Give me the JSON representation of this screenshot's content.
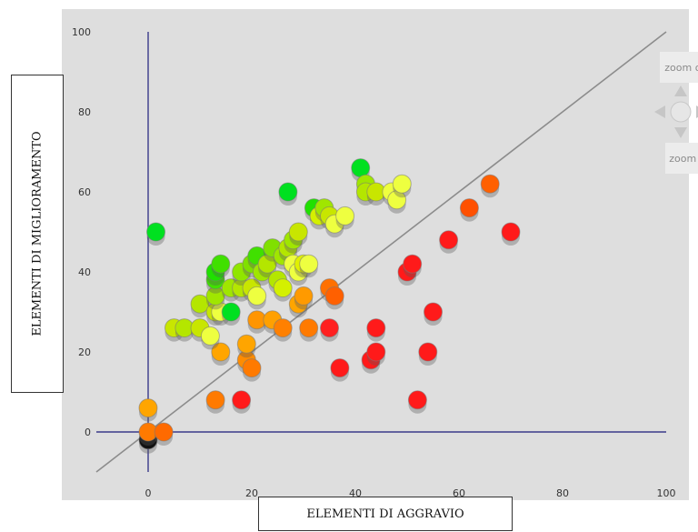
{
  "chart_data": {
    "type": "scatter",
    "title": "",
    "xlabel": "ELEMENTI DI AGGRAVIO",
    "ylabel": "ELEMENTI DI MIGLIORAMENTO",
    "xlim": [
      -10,
      100
    ],
    "ylim": [
      -10,
      100
    ],
    "x_ticks": [
      0,
      20,
      40,
      60,
      80,
      100
    ],
    "y_ticks": [
      0,
      20,
      40,
      60,
      80,
      100
    ],
    "x_tick_labels": [
      "0",
      "20",
      "40",
      "60",
      "80",
      "100"
    ],
    "y_tick_labels": [
      "0",
      "20",
      "40",
      "60",
      "80",
      "100"
    ],
    "grid": false,
    "reference_line": "y = x",
    "axis_color": "#3a3a8a",
    "plot_background": "#dedede",
    "points": [
      {
        "x": 0,
        "y": -2,
        "color": "#111111"
      },
      {
        "x": 0,
        "y": 0,
        "color": "#ff7a00"
      },
      {
        "x": 3,
        "y": 0,
        "color": "#ff6a00"
      },
      {
        "x": 0,
        "y": 6,
        "color": "#ffa500"
      },
      {
        "x": 1.5,
        "y": 50,
        "color": "#00e020"
      },
      {
        "x": 13,
        "y": 8,
        "color": "#ff7a00"
      },
      {
        "x": 18,
        "y": 8,
        "color": "#ff1a1a"
      },
      {
        "x": 14,
        "y": 20,
        "color": "#ffa500"
      },
      {
        "x": 19,
        "y": 18,
        "color": "#ff8c00"
      },
      {
        "x": 20,
        "y": 16,
        "color": "#ff7a00"
      },
      {
        "x": 19,
        "y": 22,
        "color": "#ffa500"
      },
      {
        "x": 21,
        "y": 28,
        "color": "#ff9500"
      },
      {
        "x": 24,
        "y": 28,
        "color": "#ffa000"
      },
      {
        "x": 26,
        "y": 26,
        "color": "#ff8000"
      },
      {
        "x": 29,
        "y": 32,
        "color": "#ffa500"
      },
      {
        "x": 30,
        "y": 34,
        "color": "#ff9a00"
      },
      {
        "x": 31,
        "y": 26,
        "color": "#ff7a00"
      },
      {
        "x": 35,
        "y": 36,
        "color": "#ff7000"
      },
      {
        "x": 36,
        "y": 34,
        "color": "#ff6000"
      },
      {
        "x": 35,
        "y": 26,
        "color": "#ff2020"
      },
      {
        "x": 37,
        "y": 16,
        "color": "#ff1a1a"
      },
      {
        "x": 43,
        "y": 18,
        "color": "#ff1a1a"
      },
      {
        "x": 44,
        "y": 20,
        "color": "#ff1a1a"
      },
      {
        "x": 44,
        "y": 26,
        "color": "#ff1a1a"
      },
      {
        "x": 50,
        "y": 40,
        "color": "#ff1a1a"
      },
      {
        "x": 51,
        "y": 42,
        "color": "#ff1a1a"
      },
      {
        "x": 52,
        "y": 8,
        "color": "#ff1a1a"
      },
      {
        "x": 54,
        "y": 20,
        "color": "#ff1a1a"
      },
      {
        "x": 55,
        "y": 30,
        "color": "#ff1a1a"
      },
      {
        "x": 58,
        "y": 48,
        "color": "#ff1a1a"
      },
      {
        "x": 62,
        "y": 56,
        "color": "#ff5000"
      },
      {
        "x": 66,
        "y": 62,
        "color": "#ff6000"
      },
      {
        "x": 70,
        "y": 50,
        "color": "#ff1a1a"
      },
      {
        "x": 5,
        "y": 26,
        "color": "#c8e600"
      },
      {
        "x": 7,
        "y": 26,
        "color": "#b4e600"
      },
      {
        "x": 10,
        "y": 26,
        "color": "#c8e600"
      },
      {
        "x": 12,
        "y": 24,
        "color": "#eeff40"
      },
      {
        "x": 10,
        "y": 32,
        "color": "#b4e600"
      },
      {
        "x": 13,
        "y": 30,
        "color": "#c8e600"
      },
      {
        "x": 14,
        "y": 30,
        "color": "#eeff40"
      },
      {
        "x": 16,
        "y": 30,
        "color": "#00e020"
      },
      {
        "x": 13,
        "y": 34,
        "color": "#a0e600"
      },
      {
        "x": 13,
        "y": 38,
        "color": "#40e000"
      },
      {
        "x": 13,
        "y": 40,
        "color": "#20e000"
      },
      {
        "x": 14,
        "y": 42,
        "color": "#40e000"
      },
      {
        "x": 16,
        "y": 36,
        "color": "#a0e600"
      },
      {
        "x": 18,
        "y": 36,
        "color": "#b4e600"
      },
      {
        "x": 18,
        "y": 40,
        "color": "#90e600"
      },
      {
        "x": 20,
        "y": 42,
        "color": "#80e000"
      },
      {
        "x": 21,
        "y": 44,
        "color": "#40e000"
      },
      {
        "x": 20,
        "y": 36,
        "color": "#c8e600"
      },
      {
        "x": 21,
        "y": 34,
        "color": "#eeff40"
      },
      {
        "x": 22,
        "y": 40,
        "color": "#a0e600"
      },
      {
        "x": 23,
        "y": 42,
        "color": "#b4e600"
      },
      {
        "x": 24,
        "y": 46,
        "color": "#80e000"
      },
      {
        "x": 25,
        "y": 38,
        "color": "#b4e600"
      },
      {
        "x": 26,
        "y": 36,
        "color": "#d4f000"
      },
      {
        "x": 26,
        "y": 44,
        "color": "#a0e600"
      },
      {
        "x": 27,
        "y": 46,
        "color": "#b4e600"
      },
      {
        "x": 28,
        "y": 42,
        "color": "#eeff40"
      },
      {
        "x": 28,
        "y": 48,
        "color": "#a0e600"
      },
      {
        "x": 29,
        "y": 50,
        "color": "#c8e600"
      },
      {
        "x": 29,
        "y": 40,
        "color": "#eeff40"
      },
      {
        "x": 30,
        "y": 42,
        "color": "#e0f000"
      },
      {
        "x": 31,
        "y": 42,
        "color": "#eeff40"
      },
      {
        "x": 27,
        "y": 60,
        "color": "#00e020"
      },
      {
        "x": 32,
        "y": 56,
        "color": "#20e000"
      },
      {
        "x": 33,
        "y": 54,
        "color": "#d4f000"
      },
      {
        "x": 34,
        "y": 56,
        "color": "#a0e600"
      },
      {
        "x": 35,
        "y": 54,
        "color": "#c8e600"
      },
      {
        "x": 36,
        "y": 52,
        "color": "#eeff40"
      },
      {
        "x": 38,
        "y": 54,
        "color": "#eeff40"
      },
      {
        "x": 41,
        "y": 66,
        "color": "#00e020"
      },
      {
        "x": 42,
        "y": 62,
        "color": "#a0e600"
      },
      {
        "x": 42,
        "y": 60,
        "color": "#b4e600"
      },
      {
        "x": 44,
        "y": 60,
        "color": "#c8e600"
      },
      {
        "x": 47,
        "y": 60,
        "color": "#eeff40"
      },
      {
        "x": 48,
        "y": 58,
        "color": "#eeff40"
      },
      {
        "x": 49,
        "y": 62,
        "color": "#eeff40"
      }
    ]
  },
  "controls": {
    "zoom_out_label": "zoom out",
    "zoom_in_label": "zoom in",
    "pan_icon": "pan-arrows-icon"
  }
}
